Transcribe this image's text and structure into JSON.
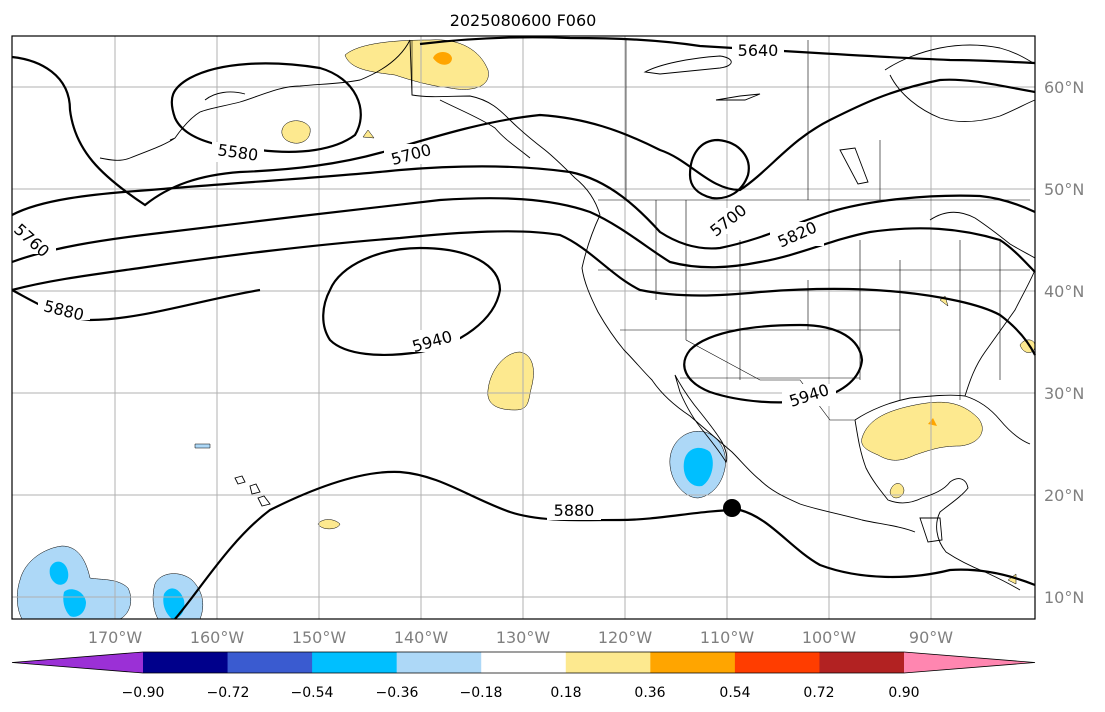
{
  "title": "2025080600 F060",
  "map": {
    "lon_labels": [
      "170°W",
      "160°W",
      "150°W",
      "140°W",
      "130°W",
      "120°W",
      "110°W",
      "100°W",
      "90°W"
    ],
    "lat_labels": [
      "60°N",
      "50°N",
      "40°N",
      "30°N",
      "20°N",
      "10°N"
    ]
  },
  "contours": {
    "labels": [
      "5640",
      "5580",
      "5700",
      "5760",
      "5880",
      "5940",
      "5700",
      "5820",
      "5940",
      "5880"
    ]
  },
  "colorbar": {
    "ticks": [
      "−0.90",
      "−0.72",
      "−0.54",
      "−0.36",
      "−0.18",
      "0.18",
      "0.36",
      "0.54",
      "0.72",
      "0.90"
    ],
    "colors": [
      "#9b30d6",
      "#00008b",
      "#3a5bd0",
      "#00bfff",
      "#add8f7",
      "#ffffff",
      "#fde98f",
      "#ffa500",
      "#ff3d00",
      "#b22222",
      "#ff86b0"
    ]
  }
}
